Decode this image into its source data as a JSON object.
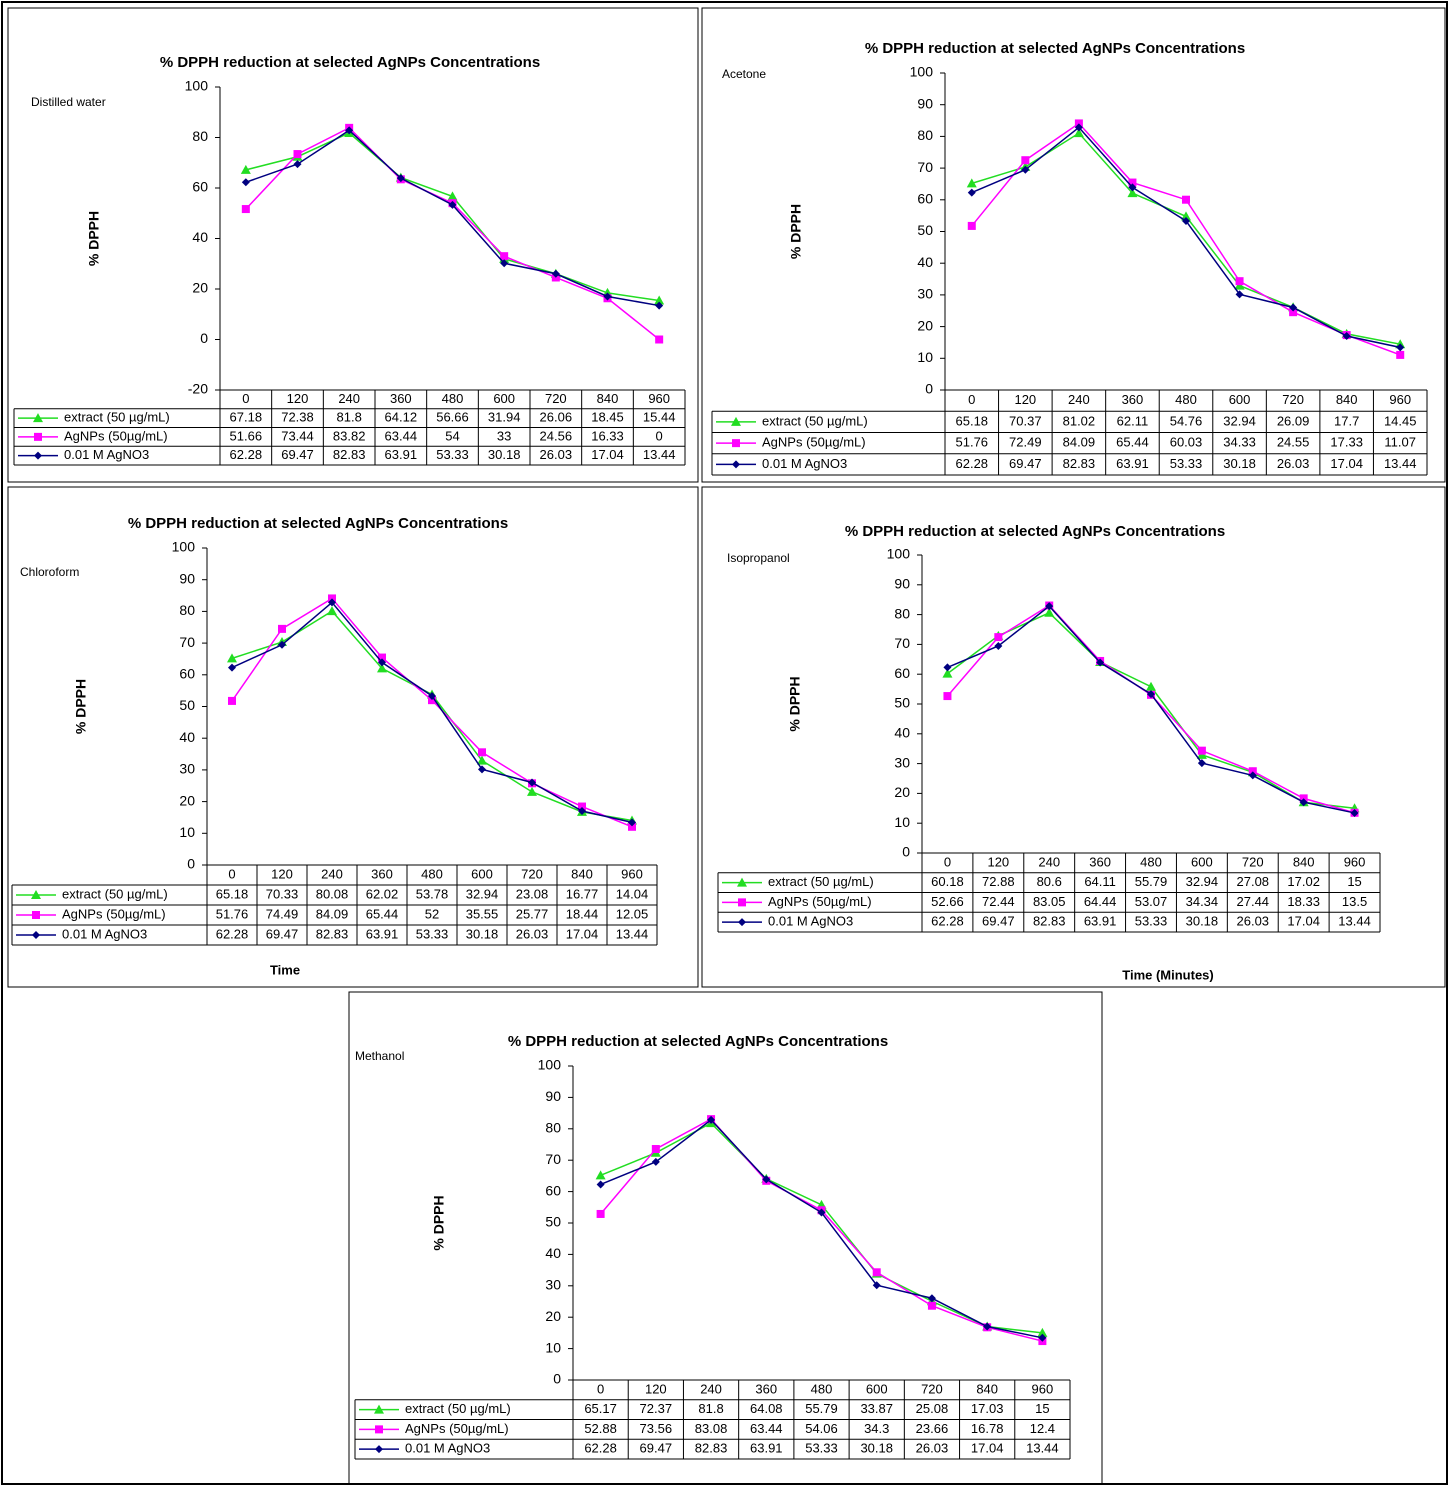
{
  "chart_data": [
    {
      "type": "line",
      "title": "% DPPH reduction at selected AgNPs Concentrations",
      "annotation": "Distilled water",
      "y_label": "% DPPH",
      "categories": [
        "0",
        "120",
        "240",
        "360",
        "480",
        "600",
        "720",
        "840",
        "960"
      ],
      "series": [
        {
          "name": "extract (50 µg/mL)",
          "color": "#22dd22",
          "values": [
            67.18,
            72.38,
            81.8,
            64.12,
            56.66,
            31.94,
            26.06,
            18.45,
            15.44
          ]
        },
        {
          "name": "AgNPs  (50µg/mL)",
          "color": "#ff00ff",
          "values": [
            51.66,
            73.44,
            83.82,
            63.44,
            54,
            33,
            24.56,
            16.33,
            0
          ]
        },
        {
          "name": "0.01 M AgNO3",
          "color": "#000080",
          "values": [
            62.28,
            69.47,
            82.83,
            63.91,
            53.33,
            30.18,
            26.03,
            17.04,
            13.44
          ]
        }
      ],
      "ylim": [
        -20,
        100
      ],
      "yticks": [
        -20,
        0,
        20,
        40,
        60,
        80,
        100
      ]
    },
    {
      "type": "line",
      "title": "% DPPH reduction at selected AgNPs Concentrations",
      "annotation": "Acetone",
      "y_label": "% DPPH",
      "categories": [
        "0",
        "120",
        "240",
        "360",
        "480",
        "600",
        "720",
        "840",
        "960"
      ],
      "series": [
        {
          "name": "extract (50 µg/mL)",
          "color": "#22dd22",
          "values": [
            65.18,
            70.37,
            81.02,
            62.11,
            54.76,
            32.94,
            26.09,
            17.7,
            14.45
          ]
        },
        {
          "name": "AgNPs  (50µg/mL)",
          "color": "#ff00ff",
          "values": [
            51.76,
            72.49,
            84.09,
            65.44,
            60.03,
            34.33,
            24.55,
            17.33,
            11.07
          ]
        },
        {
          "name": "0.01 M AgNO3",
          "color": "#000080",
          "values": [
            62.28,
            69.47,
            82.83,
            63.91,
            53.33,
            30.18,
            26.03,
            17.04,
            13.44
          ]
        }
      ],
      "ylim": [
        0,
        100
      ],
      "yticks": [
        0,
        10,
        20,
        30,
        40,
        50,
        60,
        70,
        80,
        90,
        100
      ]
    },
    {
      "type": "line",
      "title": "% DPPH reduction at selected AgNPs Concentrations",
      "annotation": "Chloroform",
      "y_label": "% DPPH",
      "x_label": "Time",
      "categories": [
        "0",
        "120",
        "240",
        "360",
        "480",
        "600",
        "720",
        "840",
        "960"
      ],
      "series": [
        {
          "name": "extract (50 µg/mL)",
          "color": "#22dd22",
          "values": [
            65.18,
            70.33,
            80.08,
            62.02,
            53.78,
            32.94,
            23.08,
            16.77,
            14.04
          ]
        },
        {
          "name": "AgNPs  (50µg/mL)",
          "color": "#ff00ff",
          "values": [
            51.76,
            74.49,
            84.09,
            65.44,
            52,
            35.55,
            25.77,
            18.44,
            12.05
          ]
        },
        {
          "name": "0.01 M AgNO3",
          "color": "#000080",
          "values": [
            62.28,
            69.47,
            82.83,
            63.91,
            53.33,
            30.18,
            26.03,
            17.04,
            13.44
          ]
        }
      ],
      "ylim": [
        0,
        100
      ],
      "yticks": [
        0,
        10,
        20,
        30,
        40,
        50,
        60,
        70,
        80,
        90,
        100
      ]
    },
    {
      "type": "line",
      "title": "% DPPH reduction at selected AgNPs Concentrations",
      "annotation": "Isopropanol",
      "y_label": "% DPPH",
      "x_label": "Time (Minutes)",
      "categories": [
        "0",
        "120",
        "240",
        "360",
        "480",
        "600",
        "720",
        "840",
        "960"
      ],
      "series": [
        {
          "name": "extract (50 µg/mL)",
          "color": "#22dd22",
          "values": [
            60.18,
            72.88,
            80.6,
            64.11,
            55.79,
            32.94,
            27.08,
            17.02,
            15
          ]
        },
        {
          "name": "AgNPs  (50µg/mL)",
          "color": "#ff00ff",
          "values": [
            52.66,
            72.44,
            83.05,
            64.44,
            53.07,
            34.34,
            27.44,
            18.33,
            13.5
          ]
        },
        {
          "name": "0.01 M AgNO3",
          "color": "#000080",
          "values": [
            62.28,
            69.47,
            82.83,
            63.91,
            53.33,
            30.18,
            26.03,
            17.04,
            13.44
          ]
        }
      ],
      "ylim": [
        0,
        100
      ],
      "yticks": [
        0,
        10,
        20,
        30,
        40,
        50,
        60,
        70,
        80,
        90,
        100
      ]
    },
    {
      "type": "line",
      "title": "% DPPH reduction at selected AgNPs Concentrations",
      "annotation": "Methanol",
      "y_label": "% DPPH",
      "categories": [
        "0",
        "120",
        "240",
        "360",
        "480",
        "600",
        "720",
        "840",
        "960"
      ],
      "series": [
        {
          "name": "extract (50 µg/mL)",
          "color": "#22dd22",
          "values": [
            65.17,
            72.37,
            81.8,
            64.08,
            55.79,
            33.87,
            25.08,
            17.03,
            15
          ]
        },
        {
          "name": "AgNPs  (50µg/mL)",
          "color": "#ff00ff",
          "values": [
            52.88,
            73.56,
            83.08,
            63.44,
            54.06,
            34.3,
            23.66,
            16.78,
            12.4
          ]
        },
        {
          "name": "0.01 M AgNO3",
          "color": "#000080",
          "values": [
            62.28,
            69.47,
            82.83,
            63.91,
            53.33,
            30.18,
            26.03,
            17.04,
            13.44
          ]
        }
      ],
      "ylim": [
        0,
        100
      ],
      "yticks": [
        0,
        10,
        20,
        30,
        40,
        50,
        60,
        70,
        80,
        90,
        100
      ]
    }
  ]
}
